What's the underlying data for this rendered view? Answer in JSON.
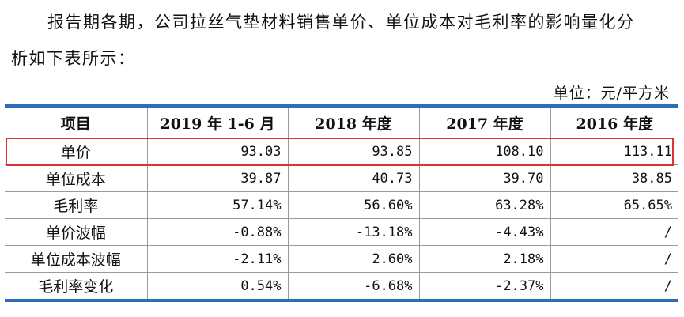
{
  "paragraph": {
    "line1": "报告期各期，公司拉丝气垫材料销售单价、单位成本对毛利率的影响量化分",
    "line2": "析如下表所示："
  },
  "unit_label": "单位：元/平方米",
  "table": {
    "headers": [
      "项目",
      "2019 年 1-6 月",
      "2018 年度",
      "2017 年度",
      "2016 年度"
    ],
    "rows": [
      {
        "label": "单价",
        "values": [
          "93.03",
          "93.85",
          "108.10",
          "113.11"
        ]
      },
      {
        "label": "单位成本",
        "values": [
          "39.87",
          "40.73",
          "39.70",
          "38.85"
        ]
      },
      {
        "label": "毛利率",
        "values": [
          "57.14%",
          "56.60%",
          "63.28%",
          "65.65%"
        ]
      },
      {
        "label": "单价波幅",
        "values": [
          "-0.88%",
          "-13.18%",
          "-4.43%",
          "/"
        ]
      },
      {
        "label": "单位成本波幅",
        "values": [
          "-2.11%",
          "2.60%",
          "2.18%",
          "/"
        ]
      },
      {
        "label": "毛利率变化",
        "values": [
          "0.54%",
          "-6.68%",
          "-2.37%",
          "/"
        ]
      }
    ]
  },
  "colors": {
    "table_rule": "#2d6db5",
    "highlight_box": "#d9343a"
  }
}
